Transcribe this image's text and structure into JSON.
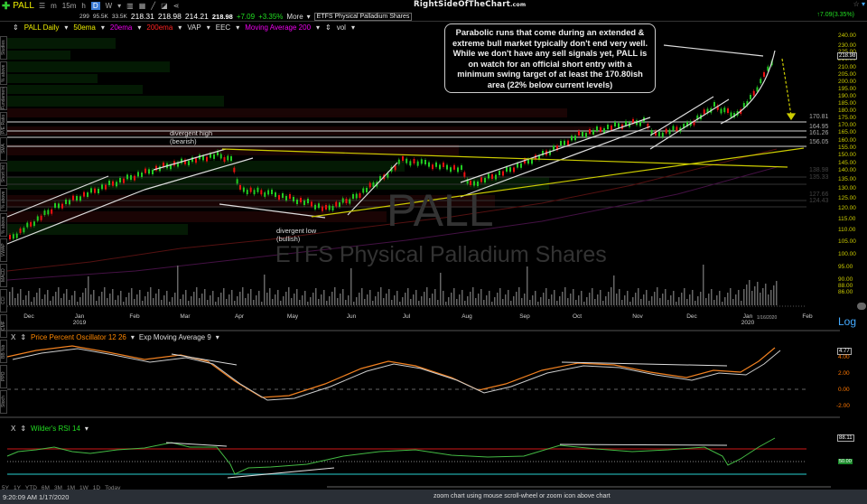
{
  "toolbar": {
    "symbol": "PALL",
    "buttons": [
      "m",
      "15m",
      "h",
      "D",
      "W"
    ],
    "active": "D",
    "brand": "RightSideOfTheChart",
    "brand_suffix": ".com"
  },
  "quote": {
    "bid_size": "299",
    "volume": "95.5K",
    "avg_volume": "33.5K",
    "open": "218.31",
    "high": "218.98",
    "low": "214.21",
    "last": "218.98",
    "change": "+7.09",
    "change_pct": "+3.35%",
    "more_label": "More",
    "name": "ETFS Physical Palladium Shares",
    "change_right": "7.09(3.35%)"
  },
  "indicators": {
    "chart_label": "PALL Daily",
    "items": [
      "50ema",
      "20ema",
      "200ema",
      "VAP",
      "EEC",
      "Moving Average 200",
      "vol"
    ]
  },
  "callout": {
    "text": "Parabolic runs that come during an extended & extreme bull market typically don't end very well. While we don't have any sell signals yet, PALL is on watch for an official short entry with a minimum swing target of at least the 170.80ish area (22% below current levels)"
  },
  "watermark": {
    "symbol": "PALL",
    "name": "ETFS Physical Palladium Shares"
  },
  "annotations": {
    "div_high_1": "divergent high",
    "div_high_2": "(bearish)",
    "div_low_1": "divergent low",
    "div_low_2": "(bullish)"
  },
  "price_axis": {
    "labels": [
      "240.00",
      "230.00",
      "225.00",
      "216.00",
      "210.00",
      "205.00",
      "200.00",
      "195.00",
      "190.00",
      "185.00",
      "180.00",
      "175.00",
      "170.00",
      "165.00",
      "160.00",
      "155.00",
      "150.00",
      "145.00",
      "140.00",
      "135.00",
      "130.00",
      "125.00",
      "120.00",
      "115.00",
      "110.00",
      "105.00",
      "100.00",
      "95.00",
      "90.00",
      "88.00",
      "86.00"
    ],
    "current": "218.98",
    "log_label": "Log"
  },
  "horizontal_levels": [
    "170.81",
    "164.95",
    "161.26",
    "156.05",
    "138.98",
    "135.33",
    "127.66",
    "124.43"
  ],
  "x_axis": {
    "labels": [
      "Dec",
      "Jan 2019",
      "Feb",
      "Mar",
      "Apr",
      "May",
      "Jun",
      "Jul",
      "Aug",
      "Sep",
      "Oct",
      "Nov",
      "Dec",
      "Jan 2020",
      "Feb"
    ],
    "date_marker": "1/16/2020"
  },
  "ppo_panel": {
    "close_label": "X",
    "title": "Price Percent Oscillator 12 26",
    "signal": "Exp Moving Average 9",
    "labels": [
      "4.00",
      "2.00",
      "0.00",
      "-2.00"
    ],
    "current": "4.77"
  },
  "rsi_panel": {
    "close_label": "X",
    "title": "Wilder's RSI 14",
    "current": "88.11",
    "mid": "50.00"
  },
  "timeframes": [
    "5Y",
    "1Y",
    "YTD",
    "6M",
    "3M",
    "1M",
    "1W",
    "1D",
    "Today"
  ],
  "side_tabs": [
    "Studies",
    "% above 50",
    "Fundamentals",
    "P/E Ratio",
    "SMA crossover",
    "Short Int",
    "% above 50",
    "% above 200",
    "VWAP",
    "MACD",
    "CCI",
    "CMF",
    "BB %b",
    "PPO",
    "Stoch"
  ],
  "status": {
    "time": "9:20:09 AM 1/17/2020",
    "hint": "zoom chart using mouse scroll-wheel or zoom icon above chart"
  },
  "colors": {
    "up": "#22cc22",
    "down": "#ee1111",
    "axis_yellow": "#cccc00",
    "ppo": "#f08020",
    "rsi": "#44bb44",
    "link": "#44aaff"
  }
}
